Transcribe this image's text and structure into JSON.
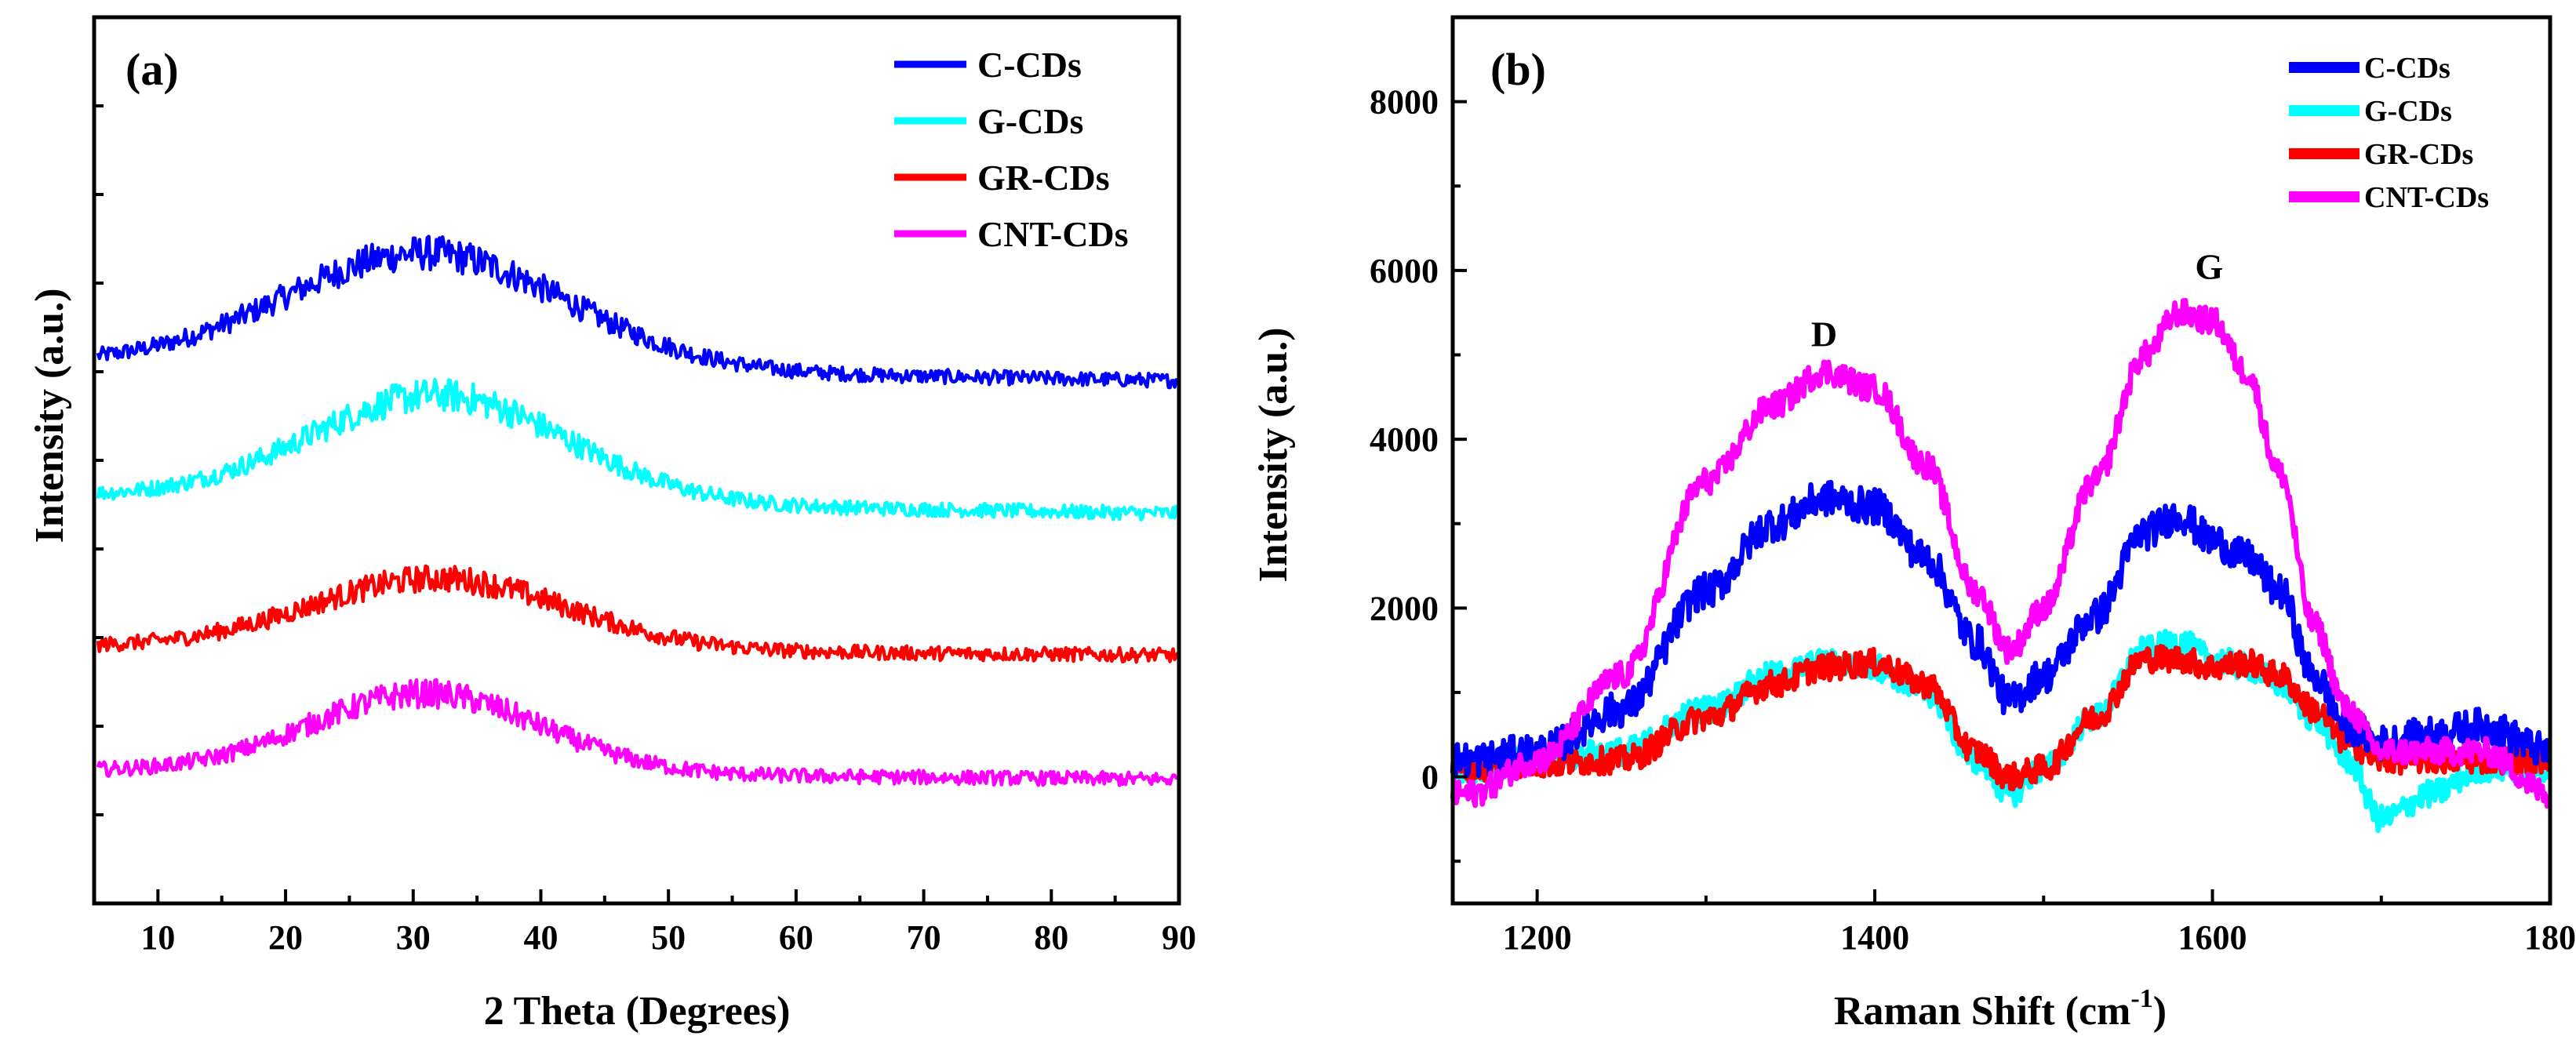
{
  "chart_data": [
    {
      "panel_label": "(a)",
      "type": "line",
      "xlabel": "2 Theta (Degrees)",
      "ylabel": "Intensity (a.u.)",
      "xlim": [
        5,
        90
      ],
      "ylim": [
        0,
        100
      ],
      "xticks": [
        "10",
        "20",
        "30",
        "40",
        "50",
        "60",
        "70",
        "80",
        "90"
      ],
      "y_tick_labels_shown": false,
      "legend_position": "top-right",
      "series": [
        {
          "name": "C-CDs",
          "color": "#0000ff",
          "baseline": 61,
          "peak_height": 13,
          "peak_center": 31,
          "peak_width": 11,
          "end_value": 59
        },
        {
          "name": "G-CDs",
          "color": "#00ffff",
          "baseline": 46,
          "peak_height": 12,
          "peak_center": 32,
          "peak_width": 10,
          "end_value": 44
        },
        {
          "name": "GR-CDs",
          "color": "#ff0000",
          "baseline": 29,
          "peak_height": 8,
          "peak_center": 32,
          "peak_width": 10,
          "end_value": 28
        },
        {
          "name": "CNT-CDs",
          "color": "#ff00ff",
          "baseline": 15,
          "peak_height": 9,
          "peak_center": 31,
          "peak_width": 9,
          "end_value": 14
        }
      ]
    },
    {
      "panel_label": "(b)",
      "type": "line",
      "xlabel": "Raman Shift (cm",
      "xlabel_superscript": "-1",
      "xlabel_suffix": ")",
      "ylabel": "Intensity (a.u.)",
      "xlim": [
        1150,
        1800
      ],
      "ylim": [
        -1500,
        9000
      ],
      "xticks": [
        "1200",
        "1400",
        "1600",
        "180"
      ],
      "yticks": [
        "0",
        "2000",
        "4000",
        "6000",
        "8000"
      ],
      "legend_position": "top-right",
      "annotations": [
        {
          "text": "D",
          "x": 1370,
          "y": 5100
        },
        {
          "text": "G",
          "x": 1598,
          "y": 5900
        }
      ],
      "series": [
        {
          "name": "C-CDs",
          "color": "#0000ff",
          "x": [
            1160,
            1200,
            1250,
            1300,
            1340,
            1370,
            1400,
            1430,
            1460,
            1480,
            1500,
            1530,
            1560,
            1580,
            1600,
            1620,
            1640,
            1660,
            1680,
            1700,
            1730,
            1760,
            1800
          ],
          "values": [
            200,
            300,
            800,
            2200,
            3000,
            3300,
            3200,
            2600,
            1600,
            900,
            1200,
            1900,
            2900,
            3100,
            2800,
            2600,
            2200,
            1200,
            600,
            400,
            500,
            600,
            300
          ]
        },
        {
          "name": "G-CDs",
          "color": "#00ffff",
          "x": [
            1160,
            1200,
            1250,
            1300,
            1340,
            1370,
            1400,
            1430,
            1460,
            1480,
            1500,
            1530,
            1560,
            1580,
            1600,
            1620,
            1640,
            1660,
            1680,
            1700,
            1730,
            1760,
            1800
          ],
          "values": [
            100,
            200,
            300,
            800,
            1200,
            1350,
            1300,
            1000,
            200,
            -200,
            100,
            700,
            1500,
            1600,
            1400,
            1300,
            1100,
            700,
            200,
            -500,
            -200,
            100,
            100
          ]
        },
        {
          "name": "GR-CDs",
          "color": "#ff0000",
          "x": [
            1160,
            1200,
            1250,
            1300,
            1340,
            1370,
            1400,
            1430,
            1460,
            1480,
            1500,
            1530,
            1560,
            1580,
            1600,
            1620,
            1640,
            1660,
            1680,
            1700,
            1730,
            1760,
            1800
          ],
          "values": [
            100,
            150,
            200,
            700,
            1100,
            1300,
            1350,
            1100,
            300,
            0,
            100,
            700,
            1400,
            1400,
            1300,
            1350,
            1200,
            800,
            400,
            200,
            200,
            200,
            200
          ]
        },
        {
          "name": "CNT-CDs",
          "color": "#ff00ff",
          "x": [
            1160,
            1200,
            1250,
            1300,
            1340,
            1370,
            1400,
            1430,
            1460,
            1480,
            1500,
            1530,
            1560,
            1580,
            1600,
            1620,
            1640,
            1660,
            1680,
            1700,
            1730,
            1760,
            1800
          ],
          "values": [
            -200,
            200,
            1200,
            3500,
            4400,
            4800,
            4600,
            3700,
            2200,
            1500,
            2000,
            3500,
            5000,
            5500,
            5400,
            4800,
            3600,
            1800,
            800,
            300,
            300,
            300,
            -200
          ]
        }
      ]
    }
  ]
}
